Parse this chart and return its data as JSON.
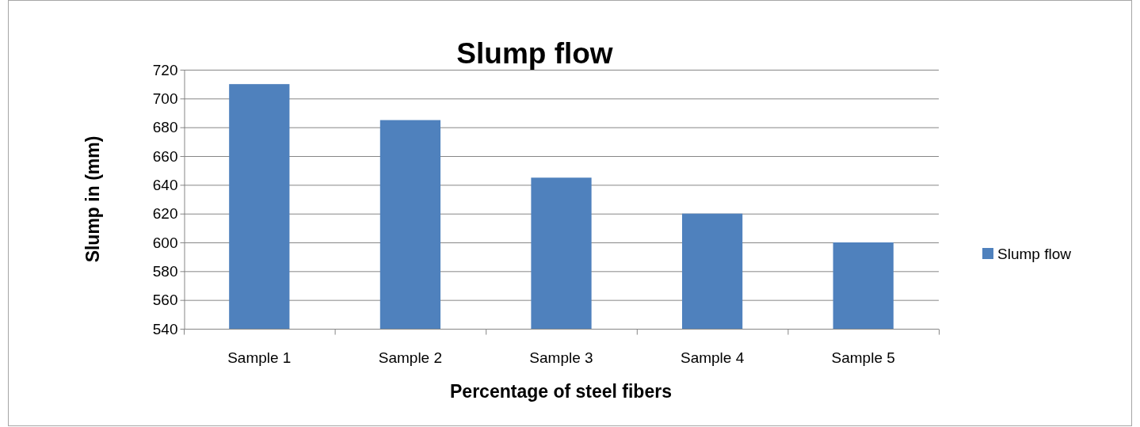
{
  "chart_data": {
    "type": "bar",
    "title": "Slump flow",
    "xlabel": "Percentage of steel fibers",
    "ylabel": "Slump in (mm)",
    "categories": [
      "Sample 1",
      "Sample 2",
      "Sample 3",
      "Sample 4",
      "Sample 5"
    ],
    "series": [
      {
        "name": "Slump flow",
        "color": "#4f81bd",
        "values": [
          710,
          685,
          645,
          620,
          600
        ]
      }
    ],
    "ylim": [
      540,
      720
    ],
    "yticks": [
      540,
      560,
      580,
      600,
      620,
      640,
      660,
      680,
      700,
      720
    ],
    "grid": "y",
    "legend": "right"
  }
}
